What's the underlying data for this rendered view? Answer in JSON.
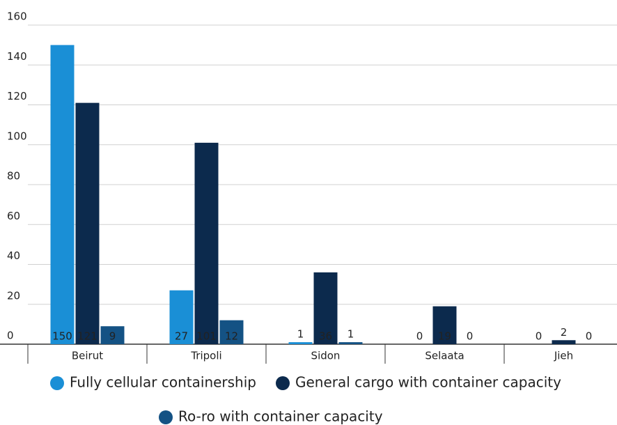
{
  "chart_data": {
    "type": "bar",
    "categories": [
      "Beirut",
      "Tripoli",
      "Sidon",
      "Selaata",
      "Jieh"
    ],
    "series": [
      {
        "name": "Fully cellular containership",
        "color": "#1a8fd6",
        "values": [
          150,
          27,
          1,
          0,
          0
        ]
      },
      {
        "name": "General cargo with container capacity",
        "color": "#0c2a4d",
        "values": [
          121,
          101,
          36,
          19,
          2
        ]
      },
      {
        "name": "Ro-ro with container capacity",
        "color": "#145284",
        "values": [
          9,
          12,
          1,
          0,
          0
        ]
      }
    ],
    "ylim": [
      0,
      160
    ],
    "yticks": [
      0,
      20,
      40,
      60,
      80,
      100,
      120,
      140,
      160
    ],
    "grid": true
  }
}
